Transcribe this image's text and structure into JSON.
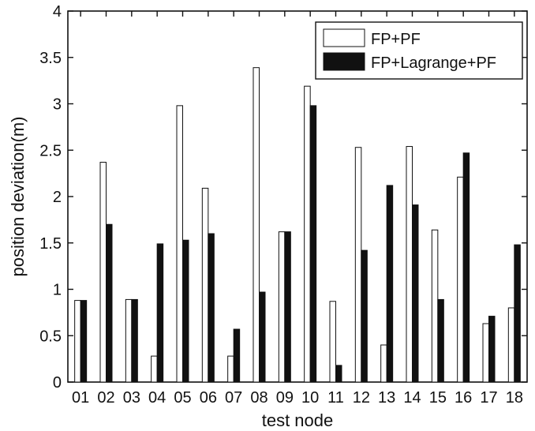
{
  "chart_data": {
    "type": "bar",
    "title": "",
    "xlabel": "test node",
    "ylabel": "position deviation(m)",
    "ylim": [
      0,
      4
    ],
    "yticks": [
      "0",
      "0.5",
      "1",
      "1.5",
      "2",
      "2.5",
      "3",
      "3.5",
      "4"
    ],
    "categories": [
      "01",
      "02",
      "03",
      "04",
      "05",
      "06",
      "07",
      "08",
      "09",
      "10",
      "11",
      "12",
      "13",
      "14",
      "15",
      "16",
      "17",
      "18"
    ],
    "series": [
      {
        "name": "FP+PF",
        "color": "#ffffff",
        "values": [
          0.88,
          2.37,
          0.89,
          0.28,
          2.98,
          2.09,
          0.28,
          3.39,
          1.62,
          3.19,
          0.87,
          2.53,
          0.4,
          2.54,
          1.64,
          2.21,
          0.63,
          0.8
        ]
      },
      {
        "name": "FP+Lagrange+PF",
        "color": "#111111",
        "values": [
          0.88,
          1.7,
          0.89,
          1.49,
          1.53,
          1.6,
          0.57,
          0.97,
          1.62,
          2.98,
          0.18,
          1.42,
          2.12,
          1.91,
          0.89,
          2.47,
          0.71,
          1.48
        ]
      }
    ],
    "grid": false,
    "legend_position": "top-right"
  }
}
